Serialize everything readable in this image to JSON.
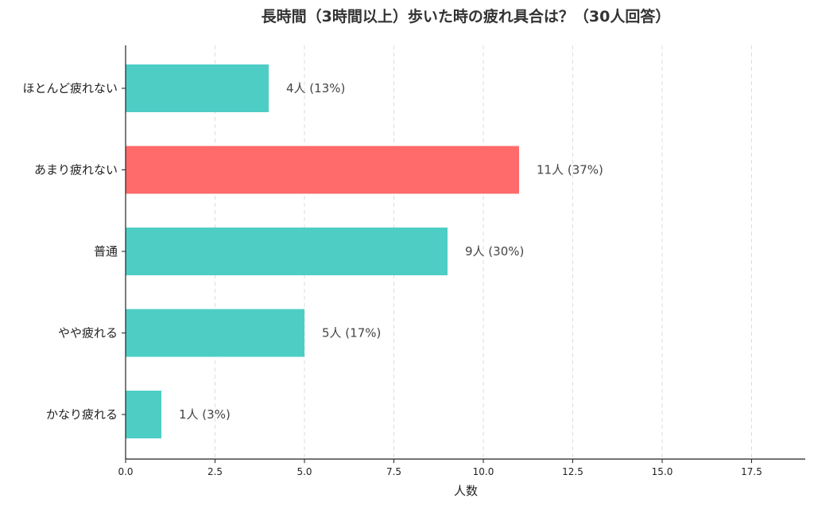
{
  "chart_data": {
    "type": "bar",
    "orientation": "horizontal",
    "title": "長時間（3時間以上）歩いた時の疲れ具合は？（30人回答）",
    "xlabel": "人数",
    "ylabel": "",
    "categories": [
      "ほとんど疲れない",
      "あまり疲れない",
      "普通",
      "やや疲れる",
      "かなり疲れる"
    ],
    "values": [
      4,
      11,
      9,
      5,
      1
    ],
    "data_labels": [
      "4人 (13%)",
      "11人 (37%)",
      "9人 (30%)",
      "5人 (17%)",
      "1人 (3%)"
    ],
    "highlight_index": 1,
    "xlim": [
      0,
      19
    ],
    "xticks": [
      0,
      2.5,
      5,
      7.5,
      10,
      12.5,
      15,
      17.5
    ],
    "xtick_labels": [
      "0.0",
      "2.5",
      "5.0",
      "7.5",
      "10.0",
      "12.5",
      "15.0",
      "17.5"
    ],
    "grid": "x-dashed",
    "colors": {
      "default": "#4ECDC4",
      "highlight": "#FF6B6B",
      "grid": "#dddddd",
      "axis": "#222222"
    }
  }
}
